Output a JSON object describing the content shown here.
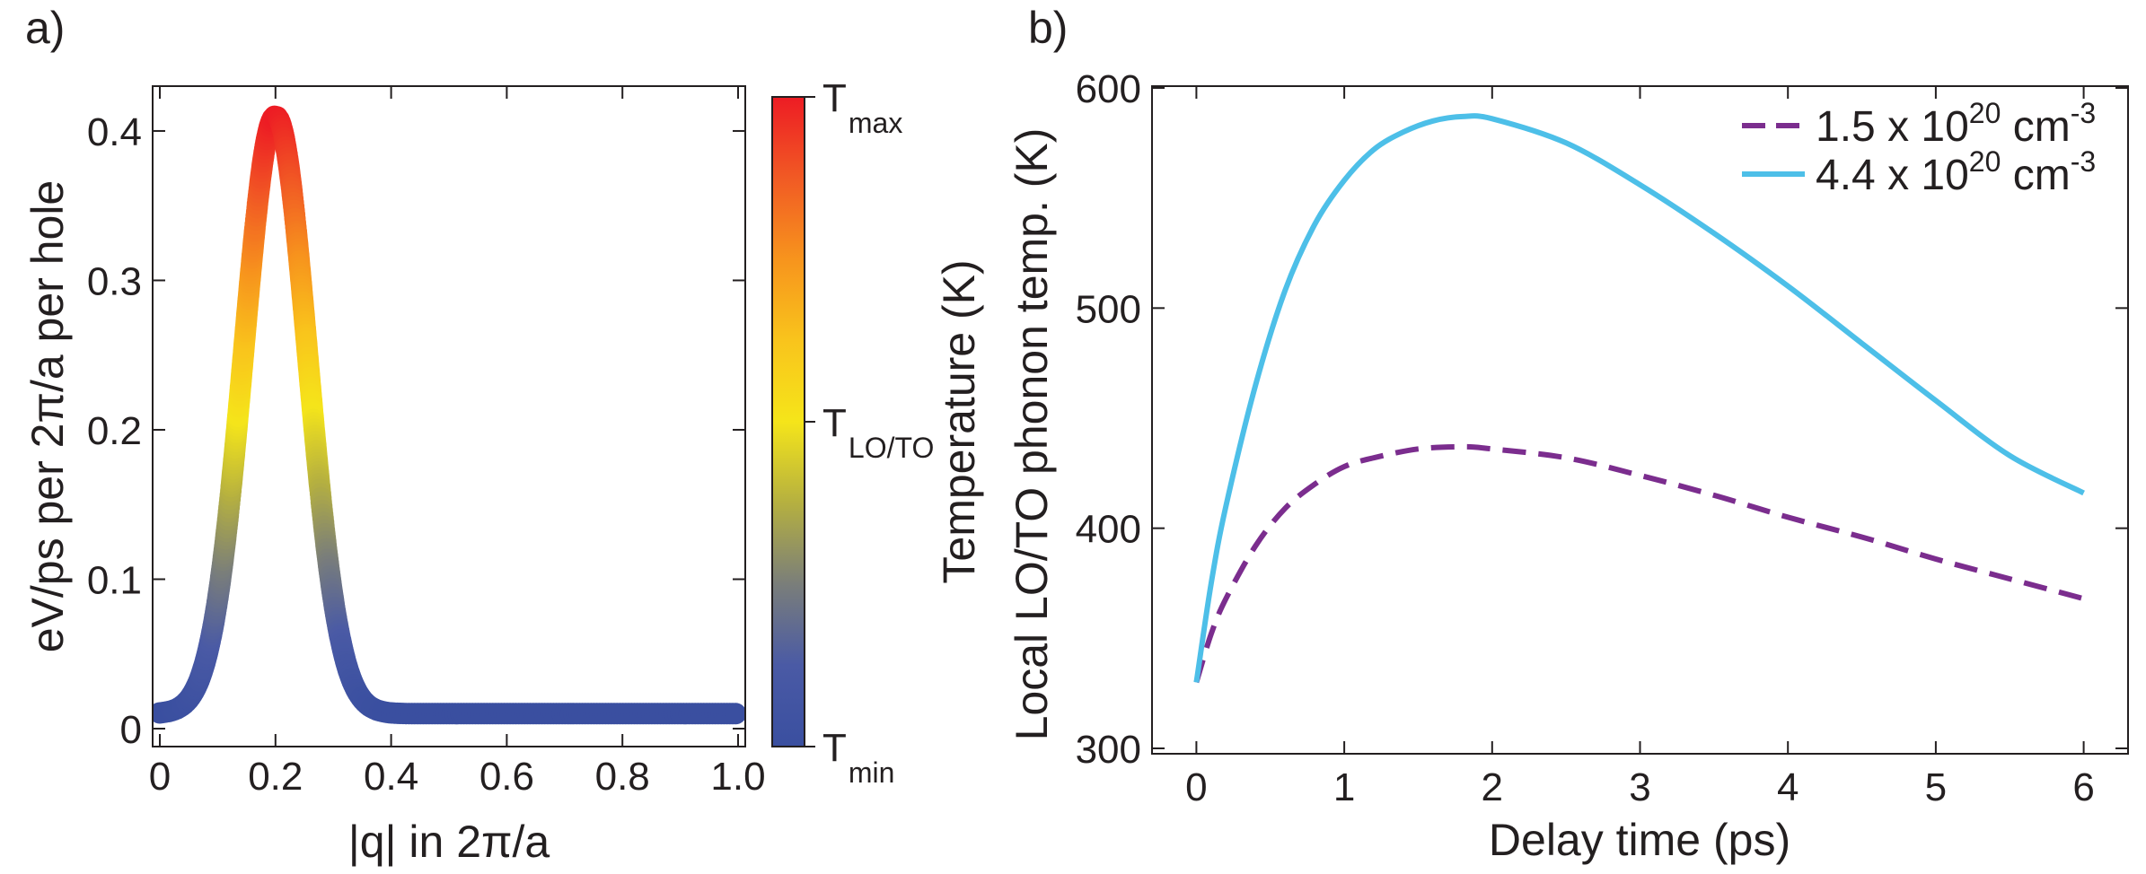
{
  "chart_data": [
    {
      "panel_label": "a)",
      "type": "scatter",
      "xlabel": "|q| in 2π/a",
      "ylabel": "eV/ps per 2π/a per hole",
      "xlim": [
        0,
        1.0
      ],
      "ylim": [
        0,
        0.43
      ],
      "xticks": [
        "0",
        "0.2",
        "0.4",
        "0.6",
        "0.8",
        "1.0"
      ],
      "yticks": [
        "0",
        "0.1",
        "0.2",
        "0.3",
        "0.4"
      ],
      "curve": {
        "description": "thick dotted curve colored by temperature",
        "baseline": 0.01,
        "peak_q": 0.2,
        "peak_value": 0.41,
        "sigma_q": 0.055,
        "points": 260
      },
      "colorbar": {
        "label": "Temperature (K)",
        "colors": [
          "#3a4fa0",
          "#4a5aa5",
          "#7a7e7a",
          "#b5b040",
          "#f5e51a",
          "#f9c41c",
          "#f7941d",
          "#f15a24",
          "#ed1c24"
        ],
        "ticks": [
          {
            "main": "T",
            "sub": "max",
            "pos": 1.0
          },
          {
            "main": "T",
            "sub": "LO/TO",
            "pos": 0.5
          },
          {
            "main": "T",
            "sub": "min",
            "pos": 0.0
          }
        ]
      }
    },
    {
      "panel_label": "b)",
      "type": "line",
      "xlabel": "Delay time (ps)",
      "ylabel": "Local LO/TO phonon temp. (K)",
      "xlim": [
        -0.3,
        6.3
      ],
      "ylim": [
        300,
        605
      ],
      "xticks": [
        "0",
        "1",
        "2",
        "3",
        "4",
        "5",
        "6"
      ],
      "yticks": [
        "300",
        "400",
        "500",
        "600"
      ],
      "series": [
        {
          "name_main": "1.5 x 10",
          "name_exp": "20",
          "name_unit": " cm",
          "name_unit_exp": "-3",
          "style": "dashed",
          "color": "#7b2d8e",
          "x": [
            0,
            0.1,
            0.2,
            0.4,
            0.6,
            0.8,
            1.0,
            1.2,
            1.5,
            1.8,
            2.0,
            2.5,
            3.0,
            3.5,
            4.0,
            4.5,
            5.0,
            5.5,
            6.0
          ],
          "y": [
            330,
            352,
            368,
            392,
            409,
            420,
            428,
            432,
            436,
            437,
            436,
            432,
            424,
            415,
            405,
            396,
            386,
            377,
            368
          ]
        },
        {
          "name_main": "4.4 x 10",
          "name_exp": "20",
          "name_unit": " cm",
          "name_unit_exp": "-3",
          "style": "solid",
          "color": "#4dbfe8",
          "x": [
            0,
            0.1,
            0.2,
            0.4,
            0.6,
            0.8,
            1.0,
            1.2,
            1.4,
            1.6,
            1.8,
            2.0,
            2.5,
            3.0,
            3.5,
            4.0,
            4.5,
            5.0,
            5.5,
            6.0
          ],
          "y": [
            330,
            375,
            410,
            465,
            508,
            538,
            558,
            572,
            580,
            585,
            587,
            586,
            575,
            556,
            534,
            510,
            484,
            458,
            433,
            416
          ]
        }
      ]
    }
  ]
}
